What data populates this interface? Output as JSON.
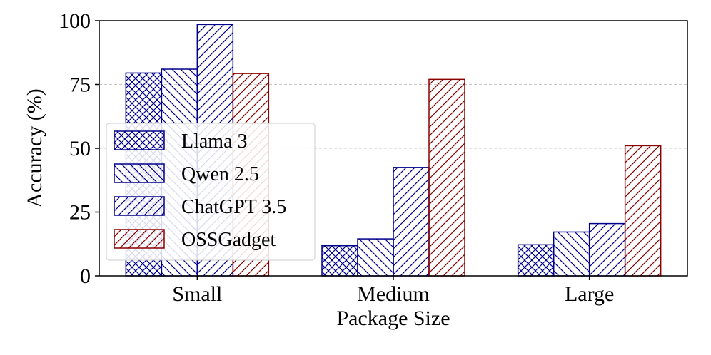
{
  "chart_data": {
    "type": "bar",
    "title": "",
    "xlabel": "Package Size",
    "ylabel": "Accuracy (%)",
    "ylim": [
      0,
      100
    ],
    "yticks": [
      0,
      25,
      50,
      75,
      100
    ],
    "grid": true,
    "legend_position": "center-left",
    "categories": [
      "Small",
      "Medium",
      "Large"
    ],
    "series": [
      {
        "name": "Llama 3",
        "values": [
          79.5,
          11.8,
          12.2
        ],
        "color": "#00008b",
        "hatch": "cross"
      },
      {
        "name": "Qwen 2.5",
        "values": [
          81.0,
          14.5,
          17.2
        ],
        "color": "#00008b",
        "hatch": "backslash"
      },
      {
        "name": "ChatGPT 3.5",
        "values": [
          98.5,
          42.5,
          20.5
        ],
        "color": "#00008b",
        "hatch": "slash"
      },
      {
        "name": "OSSGadget",
        "values": [
          79.3,
          77.0,
          51.0
        ],
        "color": "#8b0000",
        "hatch": "slash"
      }
    ]
  }
}
